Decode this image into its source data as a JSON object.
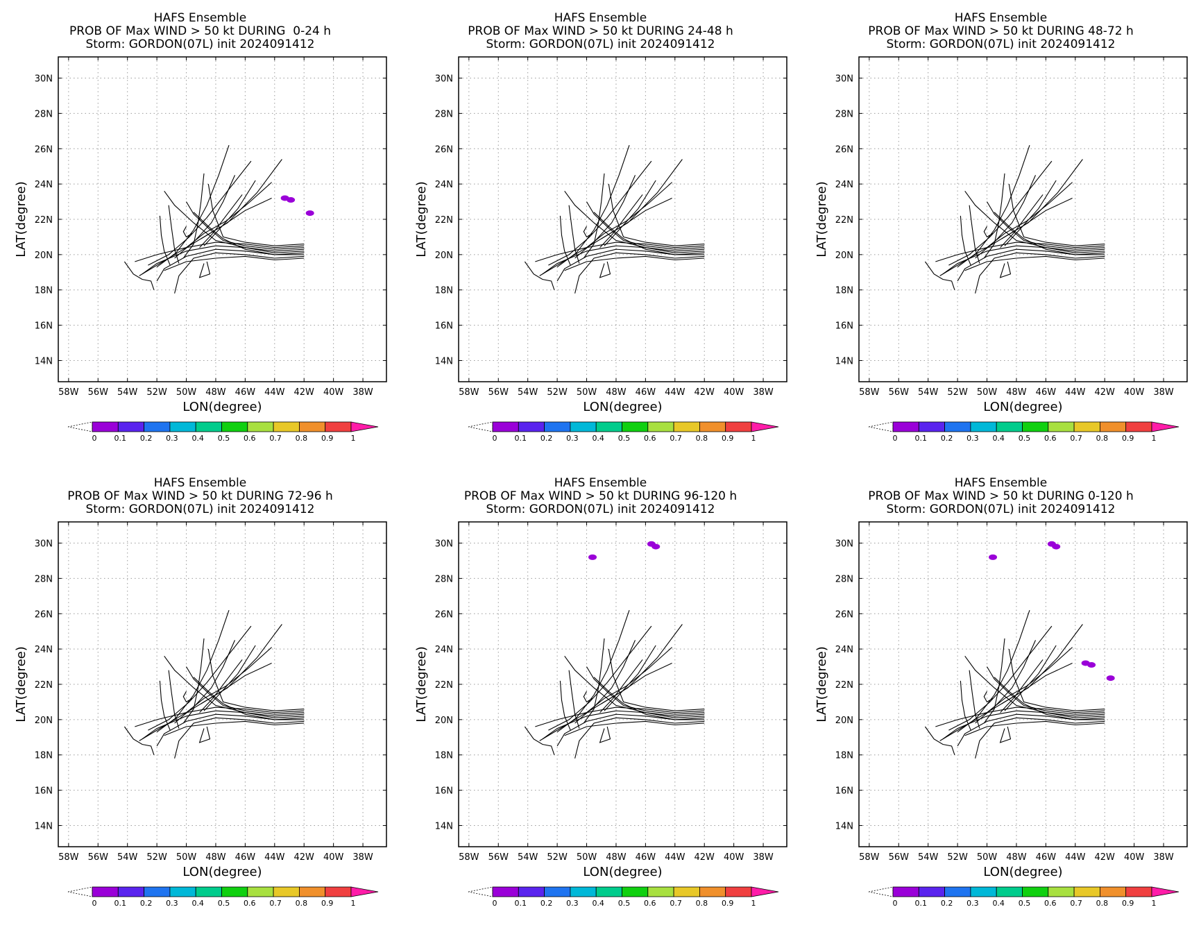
{
  "colorbar": {
    "labels": [
      "0",
      "0.1",
      "0.2",
      "0.3",
      "0.4",
      "0.5",
      "0.6",
      "0.7",
      "0.8",
      "0.9",
      "1"
    ],
    "colors": [
      "#9a00d8",
      "#5a24ee",
      "#1f74f0",
      "#00b8d8",
      "#00cc8c",
      "#10d010",
      "#a8e040",
      "#e8c828",
      "#f0902c",
      "#f04040"
    ],
    "high_arrow_color": "#ff1ca8"
  },
  "grid_style": {
    "dotted": true,
    "color": "#9a9a9a"
  },
  "track_color": "#000000",
  "prob_color": "#9a00d8",
  "chart_data": [
    {
      "type": "map",
      "title": "HAFS Ensemble",
      "subtitle": "PROB OF Max WIND > 50 kt DURING  0-24 h",
      "storm_line": "Storm: GORDON(07L) init 2024091412",
      "xlabel": "LON(degree)",
      "ylabel": "LAT(degree)",
      "xlim": [
        -58.7,
        -36.4
      ],
      "ylim": [
        12.8,
        31.2
      ],
      "x_ticks": [
        -58,
        -56,
        -54,
        -52,
        -50,
        -48,
        -46,
        -44,
        -42,
        -40,
        -38
      ],
      "x_tick_labels": [
        "58W",
        "56W",
        "54W",
        "52W",
        "50W",
        "48W",
        "46W",
        "44W",
        "42W",
        "40W",
        "38W"
      ],
      "y_ticks": [
        14,
        16,
        18,
        20,
        22,
        24,
        26,
        28,
        30
      ],
      "y_tick_labels": [
        "14N",
        "16N",
        "18N",
        "20N",
        "22N",
        "24N",
        "26N",
        "28N",
        "30N"
      ],
      "prob_patches": [
        {
          "lon": -43.3,
          "lat": 23.2,
          "value": 0.05
        },
        {
          "lon": -42.9,
          "lat": 23.1,
          "value": 0.05
        },
        {
          "lon": -41.6,
          "lat": 22.35,
          "value": 0.05
        }
      ]
    },
    {
      "type": "map",
      "title": "HAFS Ensemble",
      "subtitle": "PROB OF Max WIND > 50 kt DURING 24-48 h",
      "storm_line": "Storm: GORDON(07L) init 2024091412",
      "xlabel": "LON(degree)",
      "ylabel": "LAT(degree)",
      "xlim": [
        -58.7,
        -36.4
      ],
      "ylim": [
        12.8,
        31.2
      ],
      "x_ticks": [
        -58,
        -56,
        -54,
        -52,
        -50,
        -48,
        -46,
        -44,
        -42,
        -40,
        -38
      ],
      "x_tick_labels": [
        "58W",
        "56W",
        "54W",
        "52W",
        "50W",
        "48W",
        "46W",
        "44W",
        "42W",
        "40W",
        "38W"
      ],
      "y_ticks": [
        14,
        16,
        18,
        20,
        22,
        24,
        26,
        28,
        30
      ],
      "y_tick_labels": [
        "14N",
        "16N",
        "18N",
        "20N",
        "22N",
        "24N",
        "26N",
        "28N",
        "30N"
      ],
      "prob_patches": []
    },
    {
      "type": "map",
      "title": "HAFS Ensemble",
      "subtitle": "PROB OF Max WIND > 50 kt DURING 48-72 h",
      "storm_line": "Storm: GORDON(07L) init 2024091412",
      "xlabel": "LON(degree)",
      "ylabel": "LAT(degree)",
      "xlim": [
        -58.7,
        -36.4
      ],
      "ylim": [
        12.8,
        31.2
      ],
      "x_ticks": [
        -58,
        -56,
        -54,
        -52,
        -50,
        -48,
        -46,
        -44,
        -42,
        -40,
        -38
      ],
      "x_tick_labels": [
        "58W",
        "56W",
        "54W",
        "52W",
        "50W",
        "48W",
        "46W",
        "44W",
        "42W",
        "40W",
        "38W"
      ],
      "y_ticks": [
        14,
        16,
        18,
        20,
        22,
        24,
        26,
        28,
        30
      ],
      "y_tick_labels": [
        "14N",
        "16N",
        "18N",
        "20N",
        "22N",
        "24N",
        "26N",
        "28N",
        "30N"
      ],
      "prob_patches": []
    },
    {
      "type": "map",
      "title": "HAFS Ensemble",
      "subtitle": "PROB OF Max WIND > 50 kt DURING 72-96 h",
      "storm_line": "Storm: GORDON(07L) init 2024091412",
      "xlabel": "LON(degree)",
      "ylabel": "LAT(degree)",
      "xlim": [
        -58.7,
        -36.4
      ],
      "ylim": [
        12.8,
        31.2
      ],
      "x_ticks": [
        -58,
        -56,
        -54,
        -52,
        -50,
        -48,
        -46,
        -44,
        -42,
        -40,
        -38
      ],
      "x_tick_labels": [
        "58W",
        "56W",
        "54W",
        "52W",
        "50W",
        "48W",
        "46W",
        "44W",
        "42W",
        "40W",
        "38W"
      ],
      "y_ticks": [
        14,
        16,
        18,
        20,
        22,
        24,
        26,
        28,
        30
      ],
      "y_tick_labels": [
        "14N",
        "16N",
        "18N",
        "20N",
        "22N",
        "24N",
        "26N",
        "28N",
        "30N"
      ],
      "prob_patches": []
    },
    {
      "type": "map",
      "title": "HAFS Ensemble",
      "subtitle": "PROB OF Max WIND > 50 kt DURING 96-120 h",
      "storm_line": "Storm: GORDON(07L) init 2024091412",
      "xlabel": "LON(degree)",
      "ylabel": "LAT(degree)",
      "xlim": [
        -58.7,
        -36.4
      ],
      "ylim": [
        12.8,
        31.2
      ],
      "x_ticks": [
        -58,
        -56,
        -54,
        -52,
        -50,
        -48,
        -46,
        -44,
        -42,
        -40,
        -38
      ],
      "x_tick_labels": [
        "58W",
        "56W",
        "54W",
        "52W",
        "50W",
        "48W",
        "46W",
        "44W",
        "42W",
        "40W",
        "38W"
      ],
      "y_ticks": [
        14,
        16,
        18,
        20,
        22,
        24,
        26,
        28,
        30
      ],
      "y_tick_labels": [
        "14N",
        "16N",
        "18N",
        "20N",
        "22N",
        "24N",
        "26N",
        "28N",
        "30N"
      ],
      "prob_patches": [
        {
          "lon": -45.6,
          "lat": 29.95,
          "value": 0.05
        },
        {
          "lon": -45.3,
          "lat": 29.8,
          "value": 0.05
        },
        {
          "lon": -49.6,
          "lat": 29.2,
          "value": 0.05
        }
      ]
    },
    {
      "type": "map",
      "title": "HAFS Ensemble",
      "subtitle": "PROB OF Max WIND > 50 kt DURING 0-120 h",
      "storm_line": "Storm: GORDON(07L) init 2024091412",
      "xlabel": "LON(degree)",
      "ylabel": "LAT(degree)",
      "xlim": [
        -58.7,
        -36.4
      ],
      "ylim": [
        12.8,
        31.2
      ],
      "x_ticks": [
        -58,
        -56,
        -54,
        -52,
        -50,
        -48,
        -46,
        -44,
        -42,
        -40,
        -38
      ],
      "x_tick_labels": [
        "58W",
        "56W",
        "54W",
        "52W",
        "50W",
        "48W",
        "46W",
        "44W",
        "42W",
        "40W",
        "38W"
      ],
      "y_ticks": [
        14,
        16,
        18,
        20,
        22,
        24,
        26,
        28,
        30
      ],
      "y_tick_labels": [
        "14N",
        "16N",
        "18N",
        "20N",
        "22N",
        "24N",
        "26N",
        "28N",
        "30N"
      ],
      "prob_patches": [
        {
          "lon": -45.6,
          "lat": 29.95,
          "value": 0.05
        },
        {
          "lon": -45.3,
          "lat": 29.8,
          "value": 0.05
        },
        {
          "lon": -49.6,
          "lat": 29.2,
          "value": 0.05
        },
        {
          "lon": -43.3,
          "lat": 23.2,
          "value": 0.05
        },
        {
          "lon": -42.9,
          "lat": 23.1,
          "value": 0.05
        },
        {
          "lon": -41.6,
          "lat": 22.35,
          "value": 0.05
        }
      ]
    }
  ],
  "tracks": [
    [
      [
        -42,
        20.5
      ],
      [
        -44,
        20.4
      ],
      [
        -46,
        20.6
      ],
      [
        -48,
        20.7
      ],
      [
        -50,
        20.4
      ],
      [
        -52,
        20.0
      ],
      [
        -53.5,
        19.6
      ]
    ],
    [
      [
        -42,
        20.3
      ],
      [
        -44,
        20.2
      ],
      [
        -46,
        20.4
      ],
      [
        -48,
        20.5
      ],
      [
        -50,
        20.2
      ],
      [
        -52,
        19.5
      ],
      [
        -53,
        18.9
      ]
    ],
    [
      [
        -42,
        20.1
      ],
      [
        -44,
        20.0
      ],
      [
        -46,
        20.2
      ],
      [
        -48,
        20.3
      ],
      [
        -50,
        19.9
      ],
      [
        -51.5,
        19.2
      ],
      [
        -52,
        18.5
      ]
    ],
    [
      [
        -42,
        19.9
      ],
      [
        -44,
        19.8
      ],
      [
        -46,
        20.0
      ],
      [
        -48,
        20.1
      ],
      [
        -49.5,
        19.8
      ],
      [
        -50.5,
        18.8
      ],
      [
        -50.8,
        17.8
      ]
    ],
    [
      [
        -42,
        20.4
      ],
      [
        -44,
        20.3
      ],
      [
        -46,
        20.5
      ],
      [
        -47.5,
        20.8
      ],
      [
        -48.5,
        21.5
      ],
      [
        -49.5,
        22.3
      ],
      [
        -50,
        23.0
      ]
    ],
    [
      [
        -42,
        20.2
      ],
      [
        -44,
        20.1
      ],
      [
        -46,
        20.4
      ],
      [
        -48,
        20.8
      ],
      [
        -49.5,
        21.8
      ],
      [
        -50.8,
        22.8
      ],
      [
        -51.5,
        23.6
      ]
    ],
    [
      [
        -42,
        20.0
      ],
      [
        -44,
        20.0
      ],
      [
        -46,
        20.3
      ],
      [
        -47.5,
        20.9
      ],
      [
        -48.5,
        21.6
      ],
      [
        -49.5,
        22.4
      ]
    ],
    [
      [
        -42,
        20.6
      ],
      [
        -44,
        20.5
      ],
      [
        -46,
        20.7
      ],
      [
        -47.5,
        21.0
      ],
      [
        -48.2,
        22.5
      ],
      [
        -48.5,
        24.0
      ]
    ],
    [
      [
        -42,
        19.8
      ],
      [
        -44,
        19.7
      ],
      [
        -46,
        19.9
      ],
      [
        -48,
        19.8
      ],
      [
        -50,
        19.6
      ],
      [
        -51.5,
        19.1
      ]
    ],
    [
      [
        -43.5,
        25.4
      ],
      [
        -45.2,
        23.5
      ],
      [
        -47.2,
        21.8
      ],
      [
        -48.8,
        21.0
      ],
      [
        -50.2,
        20.3
      ],
      [
        -51.8,
        19.5
      ],
      [
        -53.2,
        18.8
      ]
    ],
    [
      [
        -45.6,
        25.3
      ],
      [
        -47.2,
        23.6
      ],
      [
        -48.6,
        22.1
      ],
      [
        -49.8,
        21.0
      ],
      [
        -51.2,
        20.0
      ],
      [
        -52.6,
        19.4
      ]
    ],
    [
      [
        -47.1,
        26.2
      ],
      [
        -47.8,
        24.5
      ],
      [
        -48.6,
        22.8
      ],
      [
        -49.5,
        21.4
      ],
      [
        -50.7,
        20.1
      ],
      [
        -52.0,
        19.3
      ]
    ],
    [
      [
        -46.7,
        24.5
      ],
      [
        -47.5,
        23.0
      ],
      [
        -48.3,
        21.8
      ],
      [
        -49.4,
        20.8
      ],
      [
        -50.8,
        19.8
      ]
    ],
    [
      [
        -44.2,
        24.1
      ],
      [
        -45.8,
        22.9
      ],
      [
        -47.3,
        21.9
      ],
      [
        -48.8,
        21.2
      ],
      [
        -50.0,
        20.4
      ]
    ],
    [
      [
        -44.2,
        23.2
      ],
      [
        -46.0,
        22.5
      ],
      [
        -47.6,
        21.6
      ],
      [
        -49.0,
        20.9
      ]
    ],
    [
      [
        -48.8,
        24.6
      ],
      [
        -49.0,
        23.0
      ],
      [
        -49.2,
        21.8
      ],
      [
        -49.5,
        20.6
      ],
      [
        -50.2,
        19.8
      ]
    ],
    [
      [
        -46.2,
        23.4
      ],
      [
        -47.3,
        22.2
      ],
      [
        -48.2,
        21.2
      ],
      [
        -49.1,
        20.4
      ]
    ],
    [
      [
        -45.3,
        24.2
      ],
      [
        -46.5,
        22.6
      ],
      [
        -47.8,
        21.4
      ],
      [
        -48.8,
        20.5
      ]
    ],
    [
      [
        -51.2,
        22.8
      ],
      [
        -51.0,
        21.5
      ],
      [
        -50.8,
        20.3
      ],
      [
        -50.5,
        19.5
      ]
    ],
    [
      [
        -51.8,
        22.2
      ],
      [
        -51.7,
        21.1
      ],
      [
        -51.5,
        20.2
      ],
      [
        -51.1,
        19.4
      ]
    ],
    [
      [
        -50.0,
        21.6
      ],
      [
        -50.2,
        21.3
      ],
      [
        -50.0,
        21.0
      ],
      [
        -49.6,
        21.2
      ]
    ],
    [
      [
        -54.2,
        19.6
      ],
      [
        -53.6,
        18.9
      ],
      [
        -53.0,
        18.6
      ],
      [
        -52.4,
        18.5
      ],
      [
        -52.2,
        18.0
      ]
    ],
    [
      [
        -48.8,
        19.5
      ],
      [
        -49.1,
        18.7
      ],
      [
        -48.4,
        18.9
      ],
      [
        -48.6,
        19.6
      ]
    ]
  ]
}
